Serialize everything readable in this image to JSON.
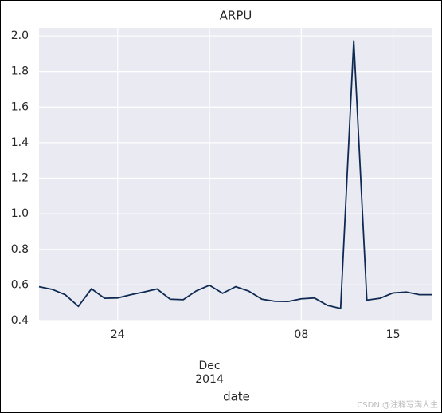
{
  "chart_data": {
    "type": "line",
    "title": "ARPU",
    "xlabel": "date",
    "x": [
      "2014-11-18",
      "2014-11-19",
      "2014-11-20",
      "2014-11-21",
      "2014-11-22",
      "2014-11-23",
      "2014-11-24",
      "2014-11-25",
      "2014-11-26",
      "2014-11-27",
      "2014-11-28",
      "2014-11-29",
      "2014-11-30",
      "2014-12-01",
      "2014-12-02",
      "2014-12-03",
      "2014-12-04",
      "2014-12-05",
      "2014-12-06",
      "2014-12-07",
      "2014-12-08",
      "2014-12-09",
      "2014-12-10",
      "2014-12-11",
      "2014-12-12",
      "2014-12-13",
      "2014-12-14",
      "2014-12-15",
      "2014-12-16",
      "2014-12-17",
      "2014-12-18"
    ],
    "values": [
      0.59,
      0.575,
      0.545,
      0.48,
      0.578,
      0.525,
      0.527,
      0.545,
      0.56,
      0.577,
      0.52,
      0.517,
      0.567,
      0.598,
      0.553,
      0.59,
      0.565,
      0.52,
      0.508,
      0.507,
      0.522,
      0.527,
      0.485,
      0.468,
      1.975,
      0.515,
      0.525,
      0.555,
      0.56,
      0.545,
      0.545
    ],
    "color": "#0e2a52",
    "xlim": [
      "2014-11-18",
      "2014-12-18"
    ],
    "xticks": [
      {
        "value": "2014-11-24",
        "label": "24"
      },
      {
        "value": "2014-12-01",
        "label": "Dec\n2014"
      },
      {
        "value": "2014-12-08",
        "label": "08"
      },
      {
        "value": "2014-12-15",
        "label": "15"
      }
    ],
    "ylim": [
      0.4,
      2.045
    ],
    "yticks": [
      0.4,
      0.6,
      0.8,
      {
        "value": 1.0,
        "label": "1.0"
      },
      1.2,
      1.4,
      1.6,
      1.8,
      {
        "value": 2.0,
        "label": "2.0"
      }
    ],
    "grid": true
  },
  "watermark": "CSDN @注释写满人生"
}
